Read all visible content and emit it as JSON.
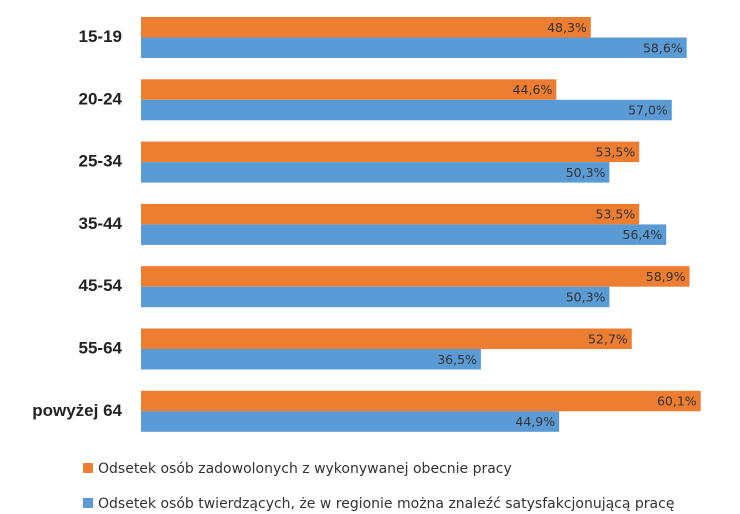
{
  "chart_data": {
    "type": "hbar",
    "categories": [
      "15-19",
      "20-24",
      "25-34",
      "35-44",
      "45-54",
      "55-64",
      "powyżej 64"
    ],
    "series": [
      {
        "name": "Odsetek osób zadowolonych z wykonywanej obecnie pracy",
        "color": "#ed7d31",
        "values": [
          48.3,
          44.6,
          53.5,
          53.5,
          58.9,
          52.7,
          60.1
        ],
        "value_labels": [
          "48,3%",
          "44,6%",
          "53,5%",
          "53,5%",
          "58,9%",
          "52,7%",
          "60,1%"
        ]
      },
      {
        "name": "Odsetek osób twierdzących, że w regionie można znaleźć satysfakcjonującą pracę",
        "color": "#5b9bd5",
        "values": [
          58.6,
          57.0,
          50.3,
          56.4,
          50.3,
          36.5,
          44.9
        ],
        "value_labels": [
          "58,6%",
          "57,0%",
          "50,3%",
          "56,4%",
          "50,3%",
          "36,5%",
          "44,9%"
        ]
      }
    ],
    "xlim": [
      0,
      64
    ]
  }
}
